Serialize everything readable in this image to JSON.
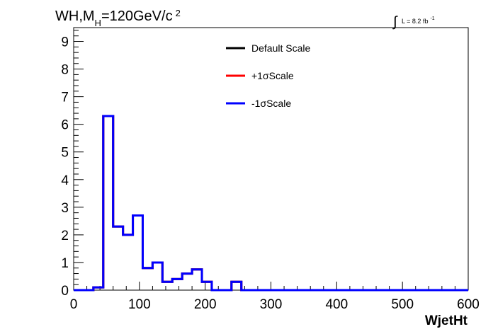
{
  "chart_data": {
    "type": "line",
    "title": {
      "main": "WH,M",
      "sub": "H",
      "rest": "=120GeV/c",
      "sup": "2"
    },
    "luminosity": {
      "symbol": "∫",
      "text": "L = 8.2 fb",
      "sup": "-1"
    },
    "xlabel": "WjetHt",
    "ylabel": "",
    "xlim": [
      0,
      600
    ],
    "ylim": [
      0,
      9.5
    ],
    "x_ticks": [
      0,
      100,
      200,
      300,
      400,
      500,
      600
    ],
    "x_tick_labels": [
      "0",
      "100",
      "200",
      "300",
      "400",
      "500",
      "600"
    ],
    "y_ticks": [
      0,
      1,
      2,
      3,
      4,
      5,
      6,
      7,
      8,
      9
    ],
    "y_tick_labels": [
      "0",
      "1",
      "2",
      "3",
      "4",
      "5",
      "6",
      "7",
      "8",
      "9"
    ],
    "bin_edges": [
      0,
      15,
      30,
      45,
      60,
      75,
      90,
      105,
      120,
      135,
      150,
      165,
      180,
      195,
      210,
      225,
      240,
      255,
      270,
      285,
      300,
      315,
      330,
      345,
      360,
      375,
      390,
      405,
      420,
      435,
      450,
      465,
      480,
      495,
      510,
      525,
      540,
      555,
      570,
      585,
      600
    ],
    "legend_position": "top-center",
    "series": [
      {
        "name": "Default Scale",
        "color": "#000000",
        "values": [
          0,
          0,
          0.1,
          6.3,
          2.3,
          2.0,
          2.7,
          0.8,
          1.0,
          0.3,
          0.4,
          0.6,
          0.75,
          0.3,
          0,
          0,
          0.3,
          0,
          0,
          0,
          0,
          0,
          0,
          0,
          0,
          0,
          0,
          0,
          0,
          0,
          0,
          0,
          0,
          0,
          0,
          0,
          0,
          0,
          0,
          0
        ]
      },
      {
        "name": "+1σScale",
        "color": "#ff0000",
        "values": [
          0,
          0,
          0.1,
          6.3,
          2.3,
          2.0,
          2.7,
          0.8,
          1.0,
          0.3,
          0.4,
          0.6,
          0.75,
          0.3,
          0,
          0,
          0.3,
          0,
          0,
          0,
          0,
          0,
          0,
          0,
          0,
          0,
          0,
          0,
          0,
          0,
          0,
          0,
          0,
          0,
          0,
          0,
          0,
          0,
          0,
          0
        ]
      },
      {
        "name": "-1σScale",
        "color": "#0000ff",
        "values": [
          0,
          0,
          0.1,
          6.3,
          2.3,
          2.0,
          2.7,
          0.8,
          1.0,
          0.3,
          0.4,
          0.6,
          0.75,
          0.3,
          0,
          0,
          0.3,
          0,
          0,
          0,
          0,
          0,
          0,
          0,
          0,
          0,
          0,
          0,
          0,
          0,
          0,
          0,
          0,
          0,
          0,
          0,
          0,
          0,
          0,
          0
        ]
      }
    ]
  }
}
